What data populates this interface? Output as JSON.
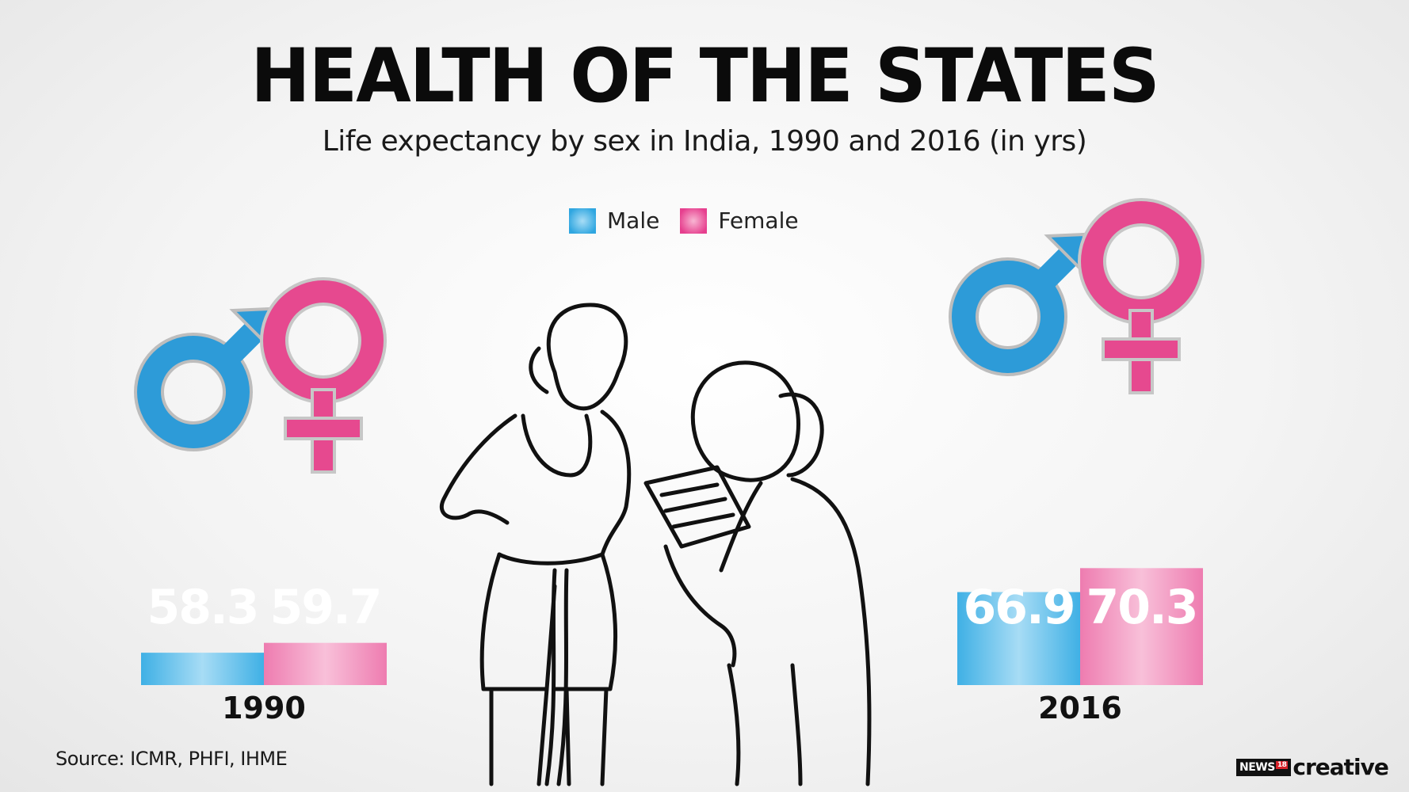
{
  "chart_data": {
    "type": "bar",
    "title": "HEALTH OF THE STATES",
    "subtitle": "Life expectancy by sex in India, 1990 and 2016 (in yrs)",
    "categories": [
      "1990",
      "2016"
    ],
    "series": [
      {
        "name": "Male",
        "values": [
          58.3,
          66.9
        ],
        "color": "#3eb1e6"
      },
      {
        "name": "Female",
        "values": [
          59.7,
          70.3
        ],
        "color": "#ef7aae"
      }
    ],
    "legend_position": "top-center",
    "grid": false
  },
  "source": "Source: ICMR, PHFI, IHME",
  "logo": {
    "brand": "NEWS",
    "number": "18",
    "suffix": "creative"
  },
  "icons": [
    "male-symbol-icon",
    "female-symbol-icon",
    "doctor-patient-illustration"
  ]
}
